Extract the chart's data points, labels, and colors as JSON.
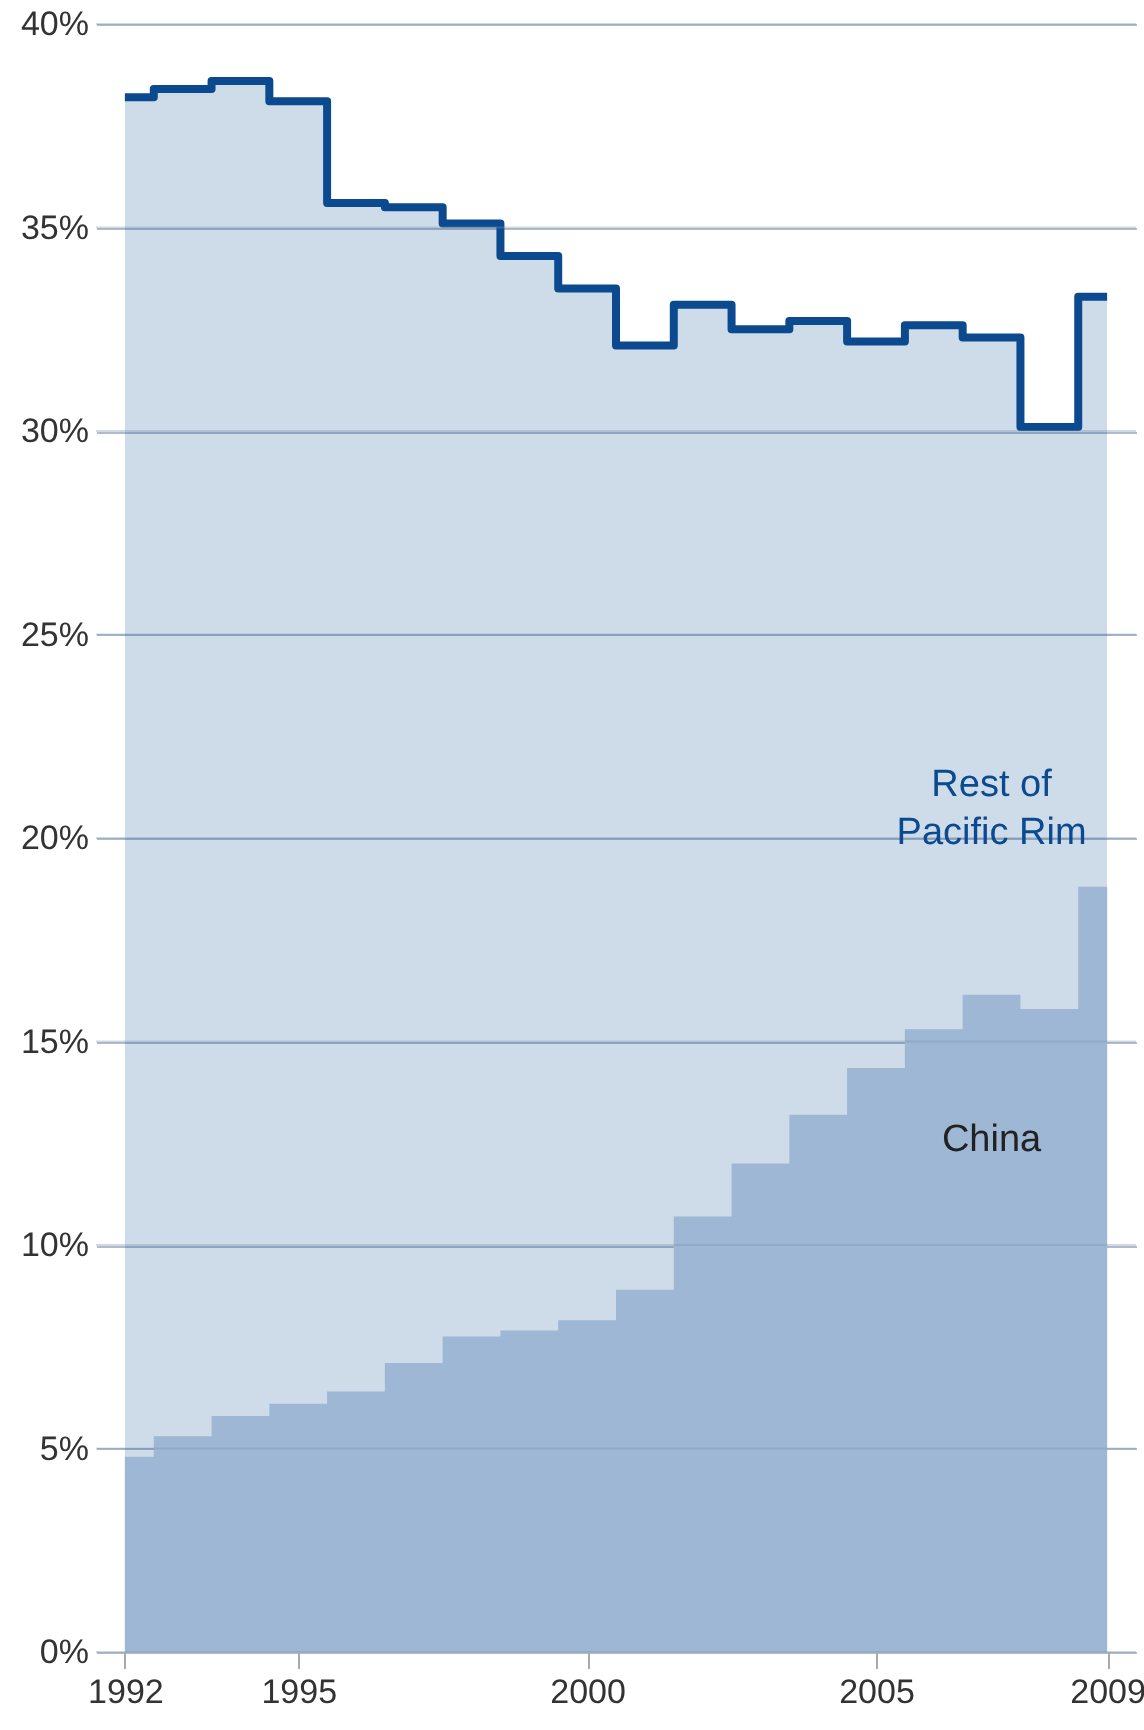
{
  "chart_data": {
    "type": "step",
    "x": [
      1992,
      1993,
      1994,
      1995,
      1996,
      1997,
      1998,
      1999,
      2000,
      2001,
      2002,
      2003,
      2004,
      2005,
      2006,
      2007,
      2008,
      2009
    ],
    "series": [
      {
        "name": "Rest of\nPacific Rim",
        "color": "#0b4a8f",
        "values": [
          38.2,
          38.4,
          38.6,
          38.1,
          35.6,
          35.5,
          35.1,
          34.3,
          33.5,
          32.1,
          33.1,
          32.5,
          32.7,
          32.2,
          32.6,
          32.3,
          30.1,
          33.3
        ]
      },
      {
        "name": "China",
        "type": "area",
        "color": "#9db7d4",
        "values": [
          4.8,
          5.3,
          5.8,
          6.1,
          6.4,
          7.1,
          7.75,
          7.9,
          8.15,
          8.9,
          10.7,
          12.0,
          13.2,
          14.35,
          15.3,
          16.15,
          15.8,
          18.8
        ]
      }
    ],
    "xlim": [
      1991.5,
      2009.5
    ],
    "xticks": [
      1992,
      1995,
      2000,
      2005,
      2009
    ],
    "ylim": [
      0,
      40
    ],
    "yticks": [
      {
        "value": 0,
        "label": "0%"
      },
      {
        "value": 5,
        "label": "5%"
      },
      {
        "value": 10,
        "label": "10%"
      },
      {
        "value": 15,
        "label": "15%"
      },
      {
        "value": 20,
        "label": "20%"
      },
      {
        "value": 25,
        "label": "25%"
      },
      {
        "value": 30,
        "label": "30%"
      },
      {
        "value": 35,
        "label": "35%"
      },
      {
        "value": 40,
        "label": "40%"
      }
    ],
    "grid": "y"
  }
}
